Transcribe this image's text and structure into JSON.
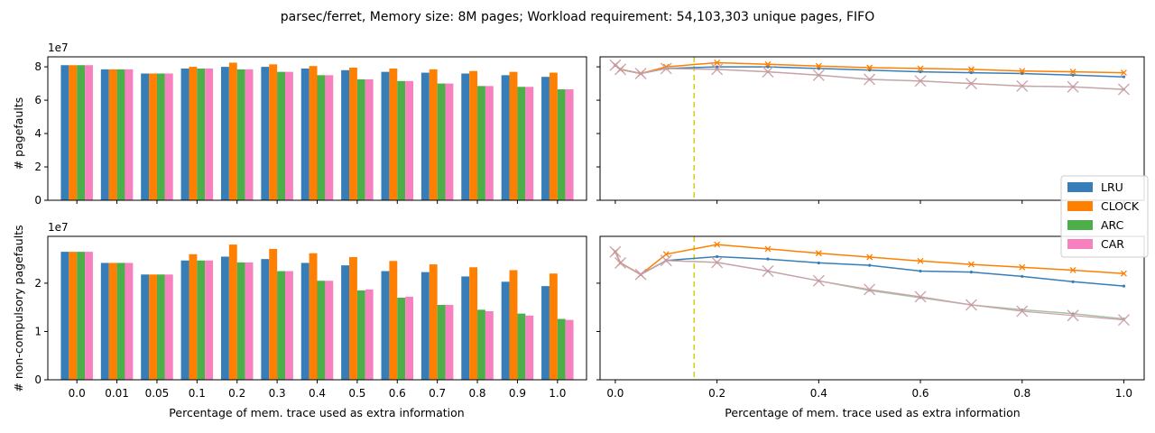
{
  "suptitle": "parsec/ferret, Memory size: 8M pages; Workload requirement: 54,103,303 unique pages, FIFO",
  "colors": {
    "LRU": "#377eb8",
    "CLOCK": "#ff7f00",
    "ARC": "#4daf4a",
    "CAR": "#f781bf"
  },
  "legend": [
    "LRU",
    "CLOCK",
    "ARC",
    "CAR"
  ],
  "chart_data": [
    {
      "type": "bar",
      "panel": "top-left",
      "categories": [
        "0.0",
        "0.01",
        "0.05",
        "0.1",
        "0.2",
        "0.3",
        "0.4",
        "0.5",
        "0.6",
        "0.7",
        "0.8",
        "0.9",
        "1.0"
      ],
      "ylabel": "# pagefaults",
      "xlabel": "",
      "offset_text": "1e7",
      "ylim": [
        0,
        8.6
      ],
      "yticks": [
        0,
        2,
        4,
        6,
        8
      ],
      "series": [
        {
          "name": "LRU",
          "values": [
            8.1,
            7.85,
            7.6,
            7.9,
            8.0,
            8.0,
            7.9,
            7.8,
            7.7,
            7.65,
            7.6,
            7.5,
            7.4
          ]
        },
        {
          "name": "CLOCK",
          "values": [
            8.1,
            7.85,
            7.6,
            8.0,
            8.25,
            8.15,
            8.05,
            7.95,
            7.9,
            7.85,
            7.75,
            7.7,
            7.65
          ]
        },
        {
          "name": "ARC",
          "values": [
            8.1,
            7.85,
            7.6,
            7.9,
            7.85,
            7.7,
            7.5,
            7.25,
            7.15,
            7.0,
            6.85,
            6.8,
            6.65
          ]
        },
        {
          "name": "CAR",
          "values": [
            8.1,
            7.85,
            7.6,
            7.9,
            7.85,
            7.7,
            7.5,
            7.25,
            7.15,
            7.0,
            6.85,
            6.8,
            6.65
          ]
        }
      ]
    },
    {
      "type": "line",
      "panel": "top-right",
      "x": [
        0.0,
        0.01,
        0.05,
        0.1,
        0.2,
        0.3,
        0.4,
        0.5,
        0.6,
        0.7,
        0.8,
        0.9,
        1.0
      ],
      "xlim": [
        -0.03,
        1.04
      ],
      "ylim": [
        0,
        8.6
      ],
      "reference_x": 0.155,
      "series": [
        {
          "name": "LRU",
          "values": [
            8.1,
            7.85,
            7.6,
            7.9,
            8.0,
            8.0,
            7.9,
            7.8,
            7.7,
            7.65,
            7.6,
            7.5,
            7.4
          ]
        },
        {
          "name": "CLOCK",
          "values": [
            8.1,
            7.85,
            7.6,
            8.0,
            8.25,
            8.15,
            8.05,
            7.95,
            7.9,
            7.85,
            7.75,
            7.7,
            7.65
          ]
        },
        {
          "name": "ARC",
          "values": [
            8.1,
            7.85,
            7.6,
            7.9,
            7.85,
            7.7,
            7.5,
            7.25,
            7.15,
            7.0,
            6.85,
            6.8,
            6.65
          ]
        },
        {
          "name": "CAR",
          "values": [
            8.1,
            7.85,
            7.6,
            7.9,
            7.85,
            7.7,
            7.5,
            7.25,
            7.15,
            7.0,
            6.85,
            6.8,
            6.65
          ]
        }
      ]
    },
    {
      "type": "bar",
      "panel": "bottom-left",
      "categories": [
        "0.0",
        "0.01",
        "0.05",
        "0.1",
        "0.2",
        "0.3",
        "0.4",
        "0.5",
        "0.6",
        "0.7",
        "0.8",
        "0.9",
        "1.0"
      ],
      "ylabel": "# non-compulsory pagefaults",
      "xlabel": "Percentage of mem. trace used as extra information",
      "offset_text": "1e7",
      "ylim": [
        0,
        2.97
      ],
      "yticks": [
        0,
        1,
        2
      ],
      "series": [
        {
          "name": "LRU",
          "values": [
            2.65,
            2.42,
            2.18,
            2.47,
            2.55,
            2.5,
            2.42,
            2.37,
            2.25,
            2.23,
            2.14,
            2.03,
            1.94
          ]
        },
        {
          "name": "CLOCK",
          "values": [
            2.65,
            2.42,
            2.18,
            2.6,
            2.8,
            2.71,
            2.62,
            2.54,
            2.46,
            2.39,
            2.33,
            2.27,
            2.2
          ]
        },
        {
          "name": "ARC",
          "values": [
            2.65,
            2.42,
            2.18,
            2.47,
            2.43,
            2.25,
            2.05,
            1.85,
            1.7,
            1.55,
            1.45,
            1.37,
            1.26
          ]
        },
        {
          "name": "CAR",
          "values": [
            2.65,
            2.42,
            2.18,
            2.47,
            2.43,
            2.25,
            2.05,
            1.87,
            1.72,
            1.55,
            1.42,
            1.33,
            1.24
          ]
        }
      ]
    },
    {
      "type": "line",
      "panel": "bottom-right",
      "x": [
        0.0,
        0.01,
        0.05,
        0.1,
        0.2,
        0.3,
        0.4,
        0.5,
        0.6,
        0.7,
        0.8,
        0.9,
        1.0
      ],
      "xlabel": "Percentage of mem. trace used as extra information",
      "xlim": [
        -0.03,
        1.04
      ],
      "xticks": [
        "0.0",
        "0.2",
        "0.4",
        "0.6",
        "0.8",
        "1.0"
      ],
      "ylim": [
        0,
        2.97
      ],
      "reference_x": 0.155,
      "series": [
        {
          "name": "LRU",
          "values": [
            2.65,
            2.42,
            2.18,
            2.47,
            2.55,
            2.5,
            2.42,
            2.37,
            2.25,
            2.23,
            2.14,
            2.03,
            1.94
          ]
        },
        {
          "name": "CLOCK",
          "values": [
            2.65,
            2.42,
            2.18,
            2.6,
            2.8,
            2.71,
            2.62,
            2.54,
            2.46,
            2.39,
            2.33,
            2.27,
            2.2
          ]
        },
        {
          "name": "ARC",
          "values": [
            2.65,
            2.42,
            2.18,
            2.47,
            2.43,
            2.25,
            2.05,
            1.85,
            1.7,
            1.55,
            1.45,
            1.37,
            1.26
          ]
        },
        {
          "name": "CAR",
          "values": [
            2.65,
            2.42,
            2.18,
            2.47,
            2.43,
            2.25,
            2.05,
            1.87,
            1.72,
            1.55,
            1.42,
            1.33,
            1.24
          ]
        }
      ]
    }
  ]
}
